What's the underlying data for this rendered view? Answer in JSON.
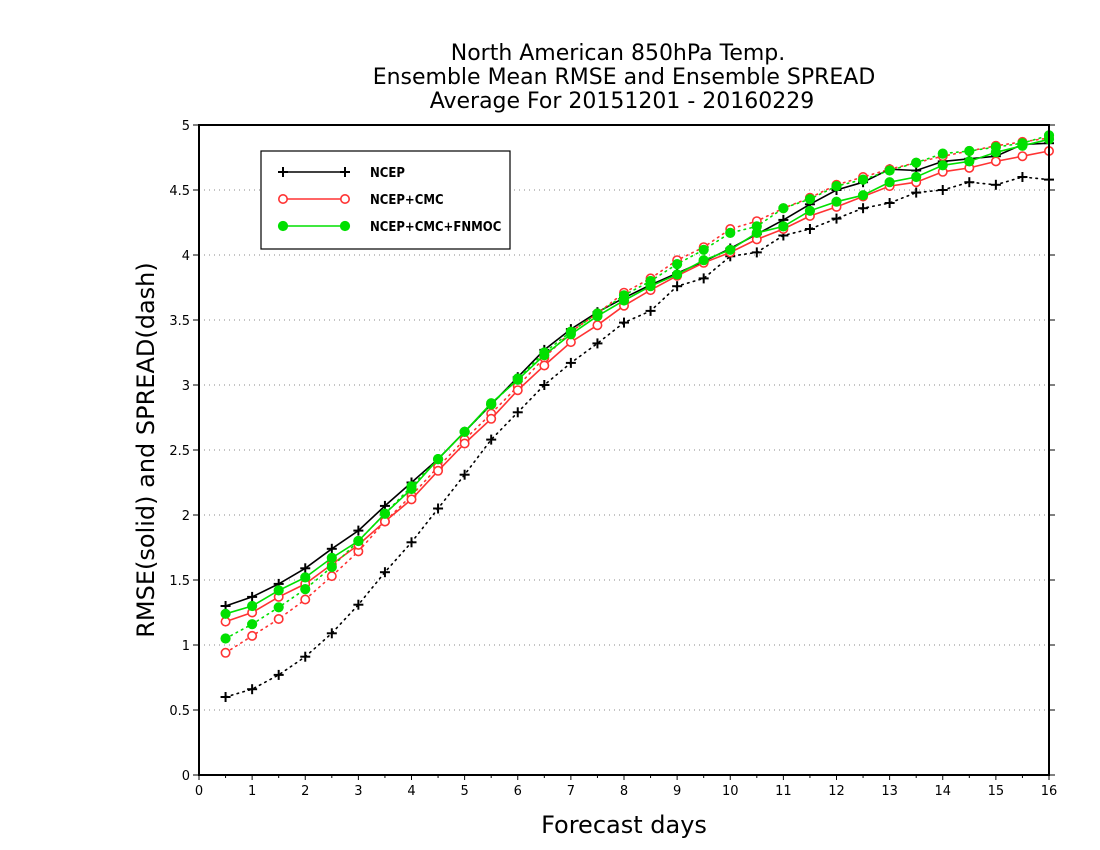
{
  "chart_data": {
    "type": "line",
    "title_lines": [
      "North American 850hPa Temp.",
      "Ensemble Mean RMSE and Ensemble SPREAD",
      "Average For 20151201 - 20160229"
    ],
    "xlabel": "Forecast days",
    "ylabel": "RMSE(solid) and SPREAD(dash)",
    "xlim": [
      0,
      16
    ],
    "ylim": [
      0,
      5
    ],
    "xticks": [
      "0",
      "1",
      "2",
      "3",
      "4",
      "5",
      "6",
      "7",
      "8",
      "9",
      "10",
      "11",
      "12",
      "13",
      "14",
      "15",
      "16"
    ],
    "yticks": [
      "0",
      "0.5",
      "1",
      "1.5",
      "2",
      "2.5",
      "3",
      "3.5",
      "4",
      "4.5",
      "5"
    ],
    "grid": "horizontal dotted",
    "legend_position": "top-left",
    "x": [
      0.5,
      1,
      1.5,
      2,
      2.5,
      3,
      3.5,
      4,
      4.5,
      5,
      5.5,
      6,
      6.5,
      7,
      7.5,
      8,
      8.5,
      9,
      9.5,
      10,
      10.5,
      11,
      11.5,
      12,
      12.5,
      13,
      13.5,
      14,
      14.5,
      15,
      15.5,
      16
    ],
    "series": [
      {
        "name": "NCEP",
        "color": "#000000",
        "marker": "plus",
        "rmse": [
          1.3,
          1.37,
          1.47,
          1.59,
          1.74,
          1.88,
          2.07,
          2.25,
          2.43,
          2.64,
          2.85,
          3.06,
          3.27,
          3.43,
          3.56,
          3.67,
          3.77,
          3.86,
          3.95,
          4.05,
          4.16,
          4.27,
          4.39,
          4.5,
          4.56,
          4.66,
          4.65,
          4.72,
          4.74,
          4.76,
          4.85,
          4.86
        ],
        "spread": [
          0.6,
          0.66,
          0.77,
          0.91,
          1.09,
          1.31,
          1.56,
          1.79,
          2.05,
          2.31,
          2.58,
          2.79,
          3.0,
          3.17,
          3.32,
          3.48,
          3.57,
          3.76,
          3.82,
          3.99,
          4.02,
          4.15,
          4.2,
          4.28,
          4.36,
          4.4,
          4.48,
          4.5,
          4.56,
          4.54,
          4.6,
          4.58
        ]
      },
      {
        "name": "NCEP+CMC",
        "color": "#ff3333",
        "marker": "open-circle",
        "rmse": [
          1.18,
          1.25,
          1.37,
          1.47,
          1.62,
          1.77,
          1.95,
          2.12,
          2.34,
          2.55,
          2.74,
          2.96,
          3.15,
          3.33,
          3.46,
          3.61,
          3.73,
          3.84,
          3.94,
          4.02,
          4.12,
          4.2,
          4.3,
          4.37,
          4.45,
          4.53,
          4.56,
          4.64,
          4.67,
          4.72,
          4.76,
          4.8
        ],
        "spread": [
          0.94,
          1.07,
          1.2,
          1.35,
          1.53,
          1.72,
          1.95,
          2.15,
          2.37,
          2.58,
          2.78,
          2.99,
          3.21,
          3.41,
          3.55,
          3.71,
          3.82,
          3.96,
          4.06,
          4.2,
          4.26,
          4.36,
          4.44,
          4.54,
          4.6,
          4.66,
          4.71,
          4.76,
          4.8,
          4.84,
          4.87,
          4.9
        ]
      },
      {
        "name": "NCEP+CMC+FNMOC",
        "color": "#00e000",
        "marker": "filled-circle",
        "rmse": [
          1.24,
          1.3,
          1.42,
          1.52,
          1.67,
          1.8,
          2.01,
          2.2,
          2.43,
          2.64,
          2.86,
          3.04,
          3.23,
          3.39,
          3.53,
          3.65,
          3.76,
          3.85,
          3.96,
          4.04,
          4.17,
          4.22,
          4.34,
          4.41,
          4.46,
          4.56,
          4.6,
          4.69,
          4.72,
          4.79,
          4.84,
          4.89
        ],
        "spread": [
          1.05,
          1.16,
          1.29,
          1.43,
          1.6,
          1.8,
          2.01,
          2.22,
          2.43,
          2.64,
          2.85,
          3.05,
          3.25,
          3.41,
          3.55,
          3.69,
          3.8,
          3.93,
          4.04,
          4.17,
          4.22,
          4.36,
          4.43,
          4.53,
          4.58,
          4.65,
          4.71,
          4.78,
          4.8,
          4.83,
          4.86,
          4.92
        ]
      }
    ]
  }
}
